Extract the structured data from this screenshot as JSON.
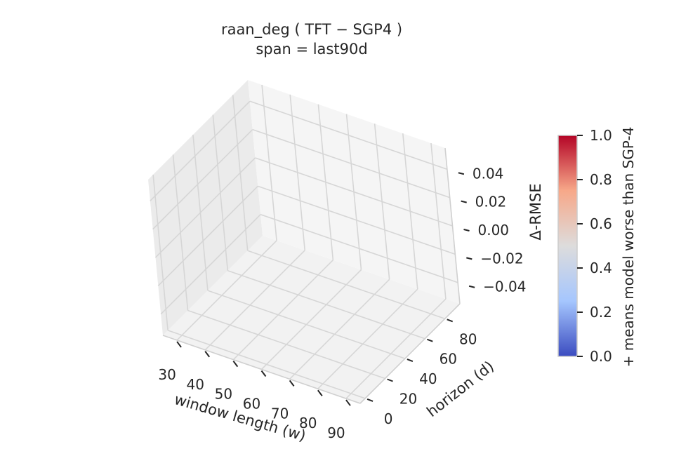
{
  "chart_data": {
    "type": "surface3d",
    "title": "raan_deg  ( TFT − SGP4 )",
    "subtitle": "span = last90d",
    "xlabel": "window length (w)",
    "ylabel": "horizon (d)",
    "zlabel": "Δ-RMSE",
    "x_ticks": [
      "30",
      "40",
      "50",
      "60",
      "70",
      "80",
      "90"
    ],
    "y_ticks": [
      "0",
      "20",
      "40",
      "60",
      "80"
    ],
    "z_ticks": [
      "0.04",
      "0.02",
      "0.00",
      "−0.02",
      "−0.04"
    ],
    "xlim": [
      25,
      95
    ],
    "ylim": [
      -5,
      95
    ],
    "zlim": [
      -0.055,
      0.055
    ],
    "values": [],
    "grid": true,
    "colorbar": {
      "label": "+ means model worse than SGP-4",
      "ticks": [
        "1.0",
        "0.8",
        "0.6",
        "0.4",
        "0.2",
        "0.0"
      ],
      "range": [
        0,
        1
      ],
      "colormap": [
        "#b40426",
        "#f7a889",
        "#dddcdc",
        "#a5c6fe",
        "#3b4cc0"
      ]
    }
  }
}
